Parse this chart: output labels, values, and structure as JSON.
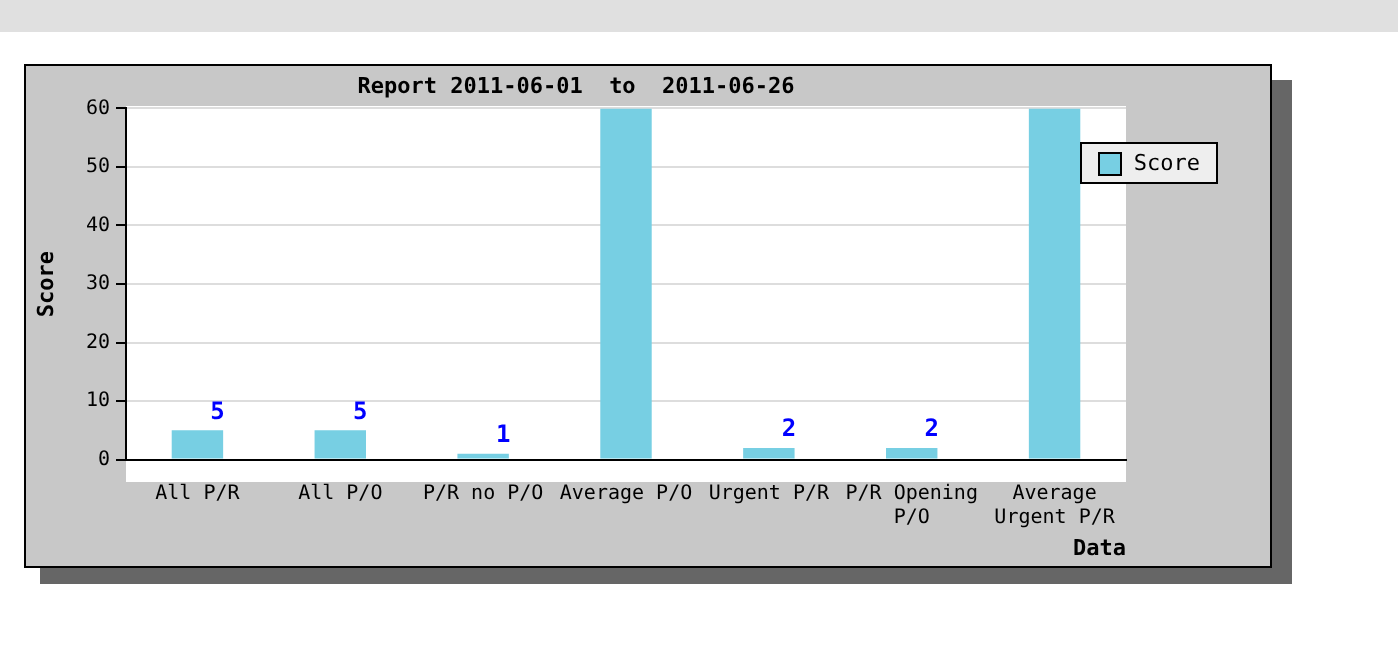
{
  "chart_data": {
    "type": "bar",
    "title": "Report 2011-06-01  to  2011-06-26",
    "xlabel": "Data",
    "ylabel": "Score",
    "categories": [
      "All P/R",
      "All P/O",
      "P/R no P/O",
      "Average P/O",
      "Urgent P/R",
      "P/R Opening P/O",
      "Average Urgent P/R"
    ],
    "series": [
      {
        "name": "Score",
        "color": "#77cfe3",
        "values": [
          5,
          5,
          1,
          60,
          2,
          2,
          60
        ],
        "value_labels": [
          "5",
          "5",
          "1",
          null,
          "2",
          "2",
          null
        ]
      }
    ],
    "ylim": [
      0,
      60
    ],
    "yticks": [
      0,
      10,
      20,
      30,
      40,
      50,
      60
    ],
    "grid": "y",
    "legend": "top right"
  }
}
